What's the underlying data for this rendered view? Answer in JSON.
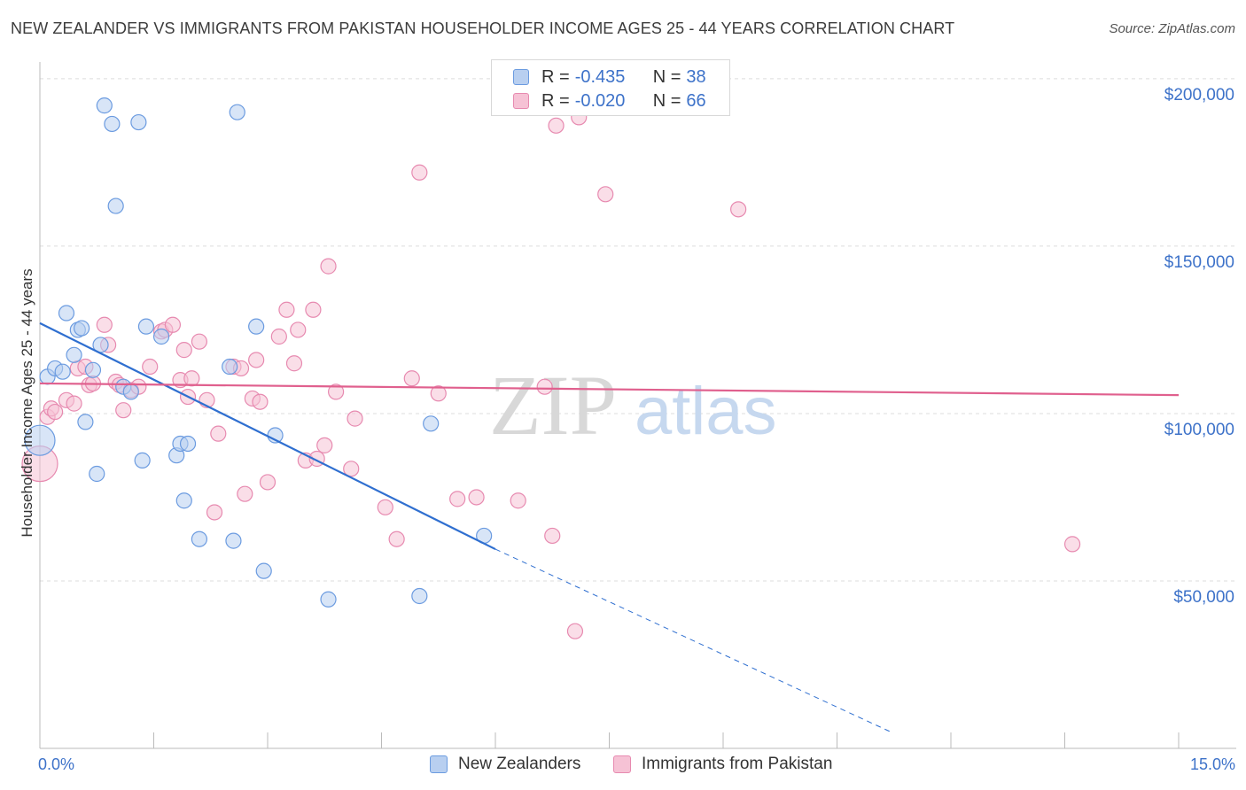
{
  "title": "NEW ZEALANDER VS IMMIGRANTS FROM PAKISTAN HOUSEHOLDER INCOME AGES 25 - 44 YEARS CORRELATION CHART",
  "source": "Source: ZipAtlas.com",
  "watermark": {
    "zip": "ZIP",
    "atlas": "atlas"
  },
  "legend": {
    "rows": [
      {
        "r_label": "R =",
        "r_value": "-0.435",
        "n_label": "N =",
        "n_value": "38"
      },
      {
        "r_label": "R =",
        "r_value": "-0.020",
        "n_label": "N =",
        "n_value": "66"
      }
    ]
  },
  "bottom_legend": {
    "series1": "New Zealanders",
    "series2": "Immigrants from Pakistan"
  },
  "colors": {
    "blue": "#6b9be0",
    "blue_fill": "#b8cff0",
    "blue_line": "#2f6fd0",
    "pink": "#e78ab0",
    "pink_fill": "#f6c2d5",
    "pink_line": "#e0608e",
    "axis_text": "#3d72c9",
    "grid": "#dcdcdc"
  },
  "chart_data": {
    "type": "scatter",
    "title": "NEW ZEALANDER VS IMMIGRANTS FROM PAKISTAN HOUSEHOLDER INCOME AGES 25 - 44 YEARS CORRELATION CHART",
    "xlabel": "",
    "ylabel": "Householder Income Ages 25 - 44 years",
    "xlim": [
      0,
      15
    ],
    "ylim": [
      0,
      205000
    ],
    "x_tick_labels": [
      "0.0%",
      "15.0%"
    ],
    "y_ticks": [
      50000,
      100000,
      150000,
      200000
    ],
    "y_tick_labels": [
      "$50,000",
      "$100,000",
      "$150,000",
      "$200,000"
    ],
    "grid": true,
    "series": [
      {
        "name": "New Zealanders",
        "r": -0.435,
        "n": 38,
        "trend": {
          "x0": 0.0,
          "y0": 127000,
          "x1": 6.0,
          "y1": 59500,
          "dash_to_x": 11.2,
          "dash_to_y": 5000
        },
        "points": [
          [
            0.0,
            92000
          ],
          [
            0.1,
            111000
          ],
          [
            0.2,
            113500
          ],
          [
            0.3,
            112500
          ],
          [
            0.35,
            130000
          ],
          [
            0.45,
            117500
          ],
          [
            0.5,
            125000
          ],
          [
            0.55,
            125500
          ],
          [
            0.6,
            97500
          ],
          [
            0.7,
            113000
          ],
          [
            0.75,
            82000
          ],
          [
            0.8,
            120500
          ],
          [
            0.85,
            192000
          ],
          [
            0.95,
            186500
          ],
          [
            1.0,
            162000
          ],
          [
            1.1,
            108000
          ],
          [
            1.2,
            106500
          ],
          [
            1.3,
            187000
          ],
          [
            1.35,
            86000
          ],
          [
            1.4,
            126000
          ],
          [
            1.6,
            123000
          ],
          [
            1.8,
            87500
          ],
          [
            1.85,
            91000
          ],
          [
            1.9,
            74000
          ],
          [
            1.95,
            91000
          ],
          [
            2.1,
            62500
          ],
          [
            2.5,
            114000
          ],
          [
            2.55,
            62000
          ],
          [
            2.6,
            190000
          ],
          [
            2.85,
            126000
          ],
          [
            2.95,
            53000
          ],
          [
            3.1,
            93500
          ],
          [
            3.8,
            44500
          ],
          [
            5.0,
            45500
          ],
          [
            5.15,
            97000
          ],
          [
            5.85,
            63500
          ]
        ]
      },
      {
        "name": "Immigrants from Pakistan",
        "r": -0.02,
        "n": 66,
        "trend": {
          "x0": 0.0,
          "y0": 109000,
          "x1": 15.0,
          "y1": 105500
        },
        "points": [
          [
            0.0,
            85000
          ],
          [
            0.1,
            99000
          ],
          [
            0.15,
            101500
          ],
          [
            0.2,
            100500
          ],
          [
            0.35,
            104000
          ],
          [
            0.45,
            103000
          ],
          [
            0.5,
            113500
          ],
          [
            0.6,
            114000
          ],
          [
            0.65,
            108500
          ],
          [
            0.7,
            109000
          ],
          [
            0.85,
            126500
          ],
          [
            0.9,
            120500
          ],
          [
            1.0,
            109500
          ],
          [
            1.05,
            108500
          ],
          [
            1.1,
            101000
          ],
          [
            1.2,
            107000
          ],
          [
            1.3,
            108000
          ],
          [
            1.45,
            114000
          ],
          [
            1.6,
            124500
          ],
          [
            1.65,
            125000
          ],
          [
            1.75,
            126500
          ],
          [
            1.85,
            110000
          ],
          [
            1.9,
            119000
          ],
          [
            1.95,
            105000
          ],
          [
            2.0,
            110500
          ],
          [
            2.1,
            121500
          ],
          [
            2.2,
            104000
          ],
          [
            2.3,
            70500
          ],
          [
            2.35,
            94000
          ],
          [
            2.55,
            114000
          ],
          [
            2.65,
            113500
          ],
          [
            2.7,
            76000
          ],
          [
            2.8,
            104500
          ],
          [
            2.85,
            116000
          ],
          [
            2.9,
            103500
          ],
          [
            3.0,
            79500
          ],
          [
            3.15,
            123000
          ],
          [
            3.25,
            131000
          ],
          [
            3.35,
            115000
          ],
          [
            3.4,
            125000
          ],
          [
            3.5,
            86000
          ],
          [
            3.6,
            131000
          ],
          [
            3.65,
            86500
          ],
          [
            3.75,
            90500
          ],
          [
            3.8,
            144000
          ],
          [
            3.9,
            106500
          ],
          [
            4.1,
            83500
          ],
          [
            4.15,
            98500
          ],
          [
            4.55,
            72000
          ],
          [
            4.7,
            62500
          ],
          [
            4.9,
            110500
          ],
          [
            5.0,
            172000
          ],
          [
            5.25,
            106000
          ],
          [
            5.5,
            74500
          ],
          [
            5.75,
            75000
          ],
          [
            6.3,
            74000
          ],
          [
            6.65,
            108000
          ],
          [
            6.75,
            63500
          ],
          [
            6.8,
            186000
          ],
          [
            7.05,
            35000
          ],
          [
            7.1,
            188500
          ],
          [
            7.45,
            165500
          ],
          [
            9.2,
            161000
          ],
          [
            13.6,
            61000
          ]
        ]
      }
    ]
  }
}
